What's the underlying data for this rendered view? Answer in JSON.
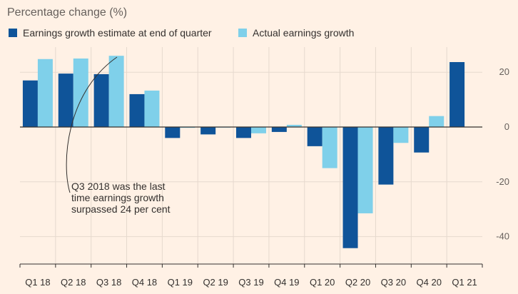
{
  "chart_data": {
    "type": "bar",
    "title": "Percentage change (%)",
    "categories": [
      "Q1 18",
      "Q2 18",
      "Q3 18",
      "Q4 18",
      "Q1 19",
      "Q2 19",
      "Q3 19",
      "Q4 19",
      "Q1 20",
      "Q2 20",
      "Q3 20",
      "Q4 20",
      "Q1 21"
    ],
    "series": [
      {
        "name": "Earnings growth estimate at end of quarter",
        "color": "#0f5499",
        "values": [
          17,
          19.5,
          19.3,
          12,
          -4,
          -2.7,
          -4,
          -1.8,
          -7,
          -44.2,
          -21,
          -9.3,
          23.7
        ]
      },
      {
        "name": "Actual earnings growth",
        "color": "#7fd0ea",
        "values": [
          24.8,
          25,
          26,
          13.3,
          -0.3,
          -0.2,
          -2.3,
          0.8,
          -15,
          -31.5,
          -5.8,
          4,
          null
        ]
      }
    ],
    "ylim": [
      -50,
      30
    ],
    "yticks": [
      20,
      0,
      -20,
      -40
    ],
    "legend_position": "top-left",
    "annotation": {
      "lines": [
        "Q3 2018 was the last",
        "time earnings growth",
        "surpassed 24 per cent"
      ]
    }
  }
}
